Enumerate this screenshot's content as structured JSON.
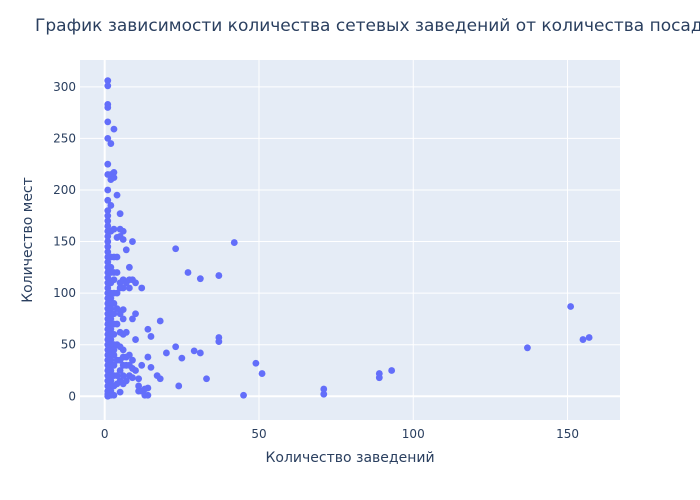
{
  "chart_data": {
    "type": "scatter",
    "title": "График зависимости количества сетевых заведений от количества посадочных мест",
    "xlabel": "Количество заведений",
    "ylabel": "Количество мест",
    "xlim": [
      -8,
      167
    ],
    "ylim": [
      -23,
      326
    ],
    "xticks": [
      0,
      50,
      100,
      150
    ],
    "yticks": [
      0,
      50,
      100,
      150,
      200,
      250,
      300
    ],
    "grid": true,
    "legend": "none",
    "colors": {
      "marker": "#636efa",
      "plot_bg": "#e5ecf6",
      "paper_bg": "#ffffff",
      "text": "#2a3f5f"
    },
    "series": [
      {
        "points": [
          [
            1,
            306
          ],
          [
            1,
            301
          ],
          [
            1,
            283
          ],
          [
            1,
            280
          ],
          [
            1,
            266
          ],
          [
            1,
            250
          ],
          [
            1,
            225
          ],
          [
            1,
            215
          ],
          [
            1,
            200
          ],
          [
            1,
            190
          ],
          [
            1,
            180
          ],
          [
            1,
            175
          ],
          [
            1,
            170
          ],
          [
            1,
            165
          ],
          [
            1,
            160
          ],
          [
            1,
            155
          ],
          [
            1,
            150
          ],
          [
            1,
            145
          ],
          [
            1,
            140
          ],
          [
            1,
            135
          ],
          [
            1,
            130
          ],
          [
            1,
            125
          ],
          [
            1,
            120
          ],
          [
            1,
            115
          ],
          [
            1,
            110
          ],
          [
            1,
            105
          ],
          [
            1,
            100
          ],
          [
            1,
            95
          ],
          [
            1,
            90
          ],
          [
            1,
            85
          ],
          [
            1,
            80
          ],
          [
            1,
            75
          ],
          [
            1,
            70
          ],
          [
            1,
            65
          ],
          [
            1,
            60
          ],
          [
            1,
            55
          ],
          [
            1,
            50
          ],
          [
            1,
            45
          ],
          [
            1,
            40
          ],
          [
            1,
            35
          ],
          [
            1,
            30
          ],
          [
            1,
            25
          ],
          [
            1,
            20
          ],
          [
            1,
            15
          ],
          [
            1,
            10
          ],
          [
            1,
            5
          ],
          [
            1,
            2
          ],
          [
            1,
            0
          ],
          [
            2,
            245
          ],
          [
            2,
            215
          ],
          [
            2,
            210
          ],
          [
            2,
            185
          ],
          [
            2,
            160
          ],
          [
            2,
            135
          ],
          [
            2,
            125
          ],
          [
            2,
            120
          ],
          [
            2,
            110
          ],
          [
            2,
            100
          ],
          [
            2,
            95
          ],
          [
            2,
            90
          ],
          [
            2,
            85
          ],
          [
            2,
            80
          ],
          [
            2,
            75
          ],
          [
            2,
            70
          ],
          [
            2,
            65
          ],
          [
            2,
            60
          ],
          [
            2,
            55
          ],
          [
            2,
            50
          ],
          [
            2,
            45
          ],
          [
            2,
            40
          ],
          [
            2,
            35
          ],
          [
            2,
            30
          ],
          [
            2,
            25
          ],
          [
            2,
            20
          ],
          [
            2,
            15
          ],
          [
            2,
            10
          ],
          [
            2,
            5
          ],
          [
            2,
            1
          ],
          [
            3,
            259
          ],
          [
            3,
            217
          ],
          [
            3,
            212
          ],
          [
            3,
            162
          ],
          [
            3,
            135
          ],
          [
            3,
            120
          ],
          [
            3,
            113
          ],
          [
            3,
            100
          ],
          [
            3,
            90
          ],
          [
            3,
            80
          ],
          [
            3,
            70
          ],
          [
            3,
            60
          ],
          [
            3,
            50
          ],
          [
            3,
            45
          ],
          [
            3,
            40
          ],
          [
            3,
            30
          ],
          [
            3,
            20
          ],
          [
            3,
            10
          ],
          [
            3,
            1
          ],
          [
            4,
            195
          ],
          [
            4,
            154
          ],
          [
            4,
            135
          ],
          [
            4,
            120
          ],
          [
            4,
            100
          ],
          [
            4,
            85
          ],
          [
            4,
            70
          ],
          [
            4,
            50
          ],
          [
            4,
            35
          ],
          [
            4,
            20
          ],
          [
            4,
            12
          ],
          [
            5,
            177
          ],
          [
            5,
            162
          ],
          [
            5,
            155
          ],
          [
            5,
            110
          ],
          [
            5,
            105
          ],
          [
            5,
            80
          ],
          [
            5,
            62
          ],
          [
            5,
            48
          ],
          [
            5,
            35
          ],
          [
            5,
            25
          ],
          [
            5,
            15
          ],
          [
            5,
            4
          ],
          [
            6,
            160
          ],
          [
            6,
            152
          ],
          [
            6,
            113
          ],
          [
            6,
            105
          ],
          [
            6,
            84
          ],
          [
            6,
            75
          ],
          [
            6,
            60
          ],
          [
            6,
            45
          ],
          [
            6,
            38
          ],
          [
            6,
            30
          ],
          [
            6,
            20
          ],
          [
            6,
            12
          ],
          [
            7,
            142
          ],
          [
            7,
            110
          ],
          [
            7,
            62
          ],
          [
            7,
            38
          ],
          [
            7,
            30
          ],
          [
            7,
            15
          ],
          [
            8,
            125
          ],
          [
            8,
            113
          ],
          [
            8,
            105
          ],
          [
            8,
            40
          ],
          [
            8,
            30
          ],
          [
            8,
            20
          ],
          [
            9,
            150
          ],
          [
            9,
            113
          ],
          [
            9,
            75
          ],
          [
            9,
            35
          ],
          [
            9,
            27
          ],
          [
            9,
            18
          ],
          [
            10,
            110
          ],
          [
            10,
            80
          ],
          [
            10,
            55
          ],
          [
            10,
            25
          ],
          [
            11,
            17
          ],
          [
            11,
            10
          ],
          [
            11,
            5
          ],
          [
            12,
            105
          ],
          [
            12,
            30
          ],
          [
            12,
            5
          ],
          [
            13,
            7
          ],
          [
            13,
            1
          ],
          [
            14,
            65
          ],
          [
            14,
            38
          ],
          [
            14,
            8
          ],
          [
            14,
            1
          ],
          [
            15,
            58
          ],
          [
            15,
            28
          ],
          [
            17,
            20
          ],
          [
            18,
            73
          ],
          [
            18,
            17
          ],
          [
            20,
            42
          ],
          [
            23,
            143
          ],
          [
            23,
            48
          ],
          [
            24,
            10
          ],
          [
            25,
            37
          ],
          [
            27,
            120
          ],
          [
            29,
            44
          ],
          [
            31,
            114
          ],
          [
            31,
            42
          ],
          [
            33,
            17
          ],
          [
            37,
            117
          ],
          [
            37,
            57
          ],
          [
            37,
            53
          ],
          [
            42,
            149
          ],
          [
            45,
            1
          ],
          [
            49,
            32
          ],
          [
            51,
            22
          ],
          [
            71,
            7
          ],
          [
            71,
            2
          ],
          [
            89,
            22
          ],
          [
            89,
            18
          ],
          [
            93,
            25
          ],
          [
            137,
            47
          ],
          [
            151,
            87
          ],
          [
            155,
            55
          ],
          [
            157,
            57
          ]
        ]
      }
    ]
  }
}
